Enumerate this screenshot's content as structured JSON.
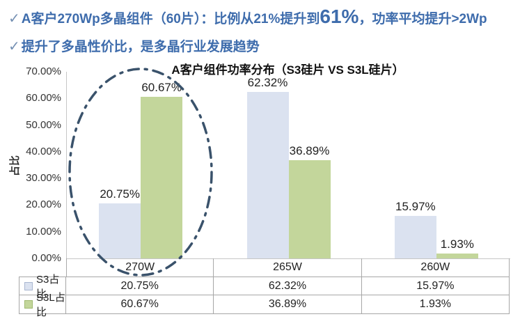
{
  "header": {
    "bullet": "✓",
    "line1_prefix": "A客户270Wp多晶组件（60片）：比例从21%提升到",
    "line1_highlight": "61%",
    "line1_suffix": "，功率平均提升>2Wp",
    "line2": "提升了多晶性价比，是多晶行业发展趋势"
  },
  "chart_data": {
    "type": "bar",
    "title": "A客户组件功率分布（S3硅片 VS S3L硅片）",
    "xlabel": "",
    "ylabel": "占比",
    "categories": [
      "270W",
      "265W",
      "260W"
    ],
    "series": [
      {
        "name": "S3占比",
        "color": "#dbe2f0",
        "values": [
          20.75,
          62.32,
          15.97
        ],
        "labels": [
          "20.75%",
          "62.32%",
          "15.97%"
        ]
      },
      {
        "name": "S3L占比",
        "color": "#c3d69b",
        "values": [
          60.67,
          36.89,
          1.93
        ],
        "labels": [
          "60.67%",
          "36.89%",
          "1.93%"
        ]
      }
    ],
    "ylim": [
      0,
      70
    ],
    "ytick_step": 10,
    "yticks": [
      "0.00%",
      "10.00%",
      "20.00%",
      "30.00%",
      "40.00%",
      "50.00%",
      "60.00%",
      "70.00%"
    ],
    "grid": false,
    "legend_position": "data-table-left",
    "annotation": {
      "shape": "dash-dot-ellipse",
      "highlights_category": "270W",
      "color": "#3a526b"
    }
  },
  "colors": {
    "header_text": "#3e6cac",
    "bullet_check": "#7590b3",
    "bar_s3": "#dbe2f0",
    "bar_s3l": "#c3d69b",
    "ellipse": "#3a526b",
    "axis_line": "#c6c6c6",
    "table_border": "#a6a6a6"
  }
}
